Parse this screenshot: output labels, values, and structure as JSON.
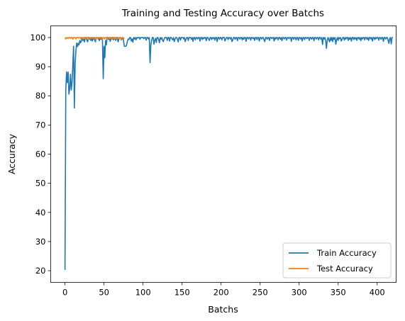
{
  "chart_data": {
    "type": "line",
    "title": "Training and Testing Accuracy over Batchs",
    "xlabel": "Batchs",
    "ylabel": "Accuracy",
    "xlim": [
      -18.3,
      424.3
    ],
    "ylim": [
      16.0,
      104.0
    ],
    "xticks": [
      0,
      50,
      100,
      150,
      200,
      250,
      300,
      350,
      400
    ],
    "yticks": [
      20,
      30,
      40,
      50,
      60,
      70,
      80,
      90,
      100
    ],
    "grid": false,
    "legend_position": "lower-right",
    "series": [
      {
        "name": "Train Accuracy",
        "color": "#1f77b4",
        "y": [
          20.3,
          82.0,
          88.2,
          84.5,
          88.2,
          80.6,
          82.5,
          87.4,
          82.0,
          84.5,
          90.6,
          97.0,
          75.8,
          91.0,
          95.5,
          98.1,
          96.9,
          98.0,
          97.5,
          99.0,
          98.2,
          98.8,
          100,
          99.0,
          99.5,
          98.5,
          100,
          100,
          99.2,
          98.5,
          100,
          99.5,
          100,
          99.0,
          100,
          98.8,
          99.5,
          100,
          99.2,
          98.5,
          100,
          100,
          99.5,
          100,
          98.9,
          100,
          99.4,
          100,
          99.0,
          85.9,
          97.0,
          93.0,
          99.0,
          97.5,
          100,
          100,
          99.3,
          100,
          98.7,
          99.6,
          100,
          100,
          99.2,
          100,
          99.5,
          99.0,
          100,
          100,
          98.5,
          99.4,
          100,
          100,
          99.2,
          99.5,
          100,
          98.9,
          97.0,
          97.0,
          97.0,
          97.5,
          98.8,
          99.5,
          99.3,
          100,
          100,
          98.8,
          99.5,
          98.4,
          100,
          99.5,
          100,
          99.2,
          100,
          99.8,
          100,
          100,
          99.4,
          100,
          100,
          100,
          100,
          99.6,
          100,
          100,
          99.1,
          100,
          100,
          99.5,
          100,
          91.4,
          97.5,
          99.0,
          100,
          100,
          97.7,
          99.1,
          99.7,
          98.3,
          100,
          100,
          99.3,
          98.2,
          100,
          99.4,
          100,
          99.0,
          98.6,
          99.5,
          100,
          100,
          100,
          99.0,
          100,
          100,
          98.8,
          100,
          100,
          99.6,
          99.2,
          100,
          98.6,
          99.5,
          100,
          100,
          99.4,
          98.5,
          100,
          100,
          99.1,
          100,
          100,
          100,
          99.5,
          100,
          98.6,
          99.4,
          100,
          100,
          99.0,
          100,
          100,
          100,
          99.4,
          100,
          98.7,
          100,
          100,
          99.2,
          100,
          100,
          99.5,
          100,
          100,
          98.8,
          100,
          100,
          99.3,
          100,
          99.6,
          100,
          100,
          98.9,
          100,
          100,
          99.5,
          99.0,
          100,
          100,
          99.3,
          100,
          99.7,
          100,
          99.1,
          100,
          100,
          98.6,
          100,
          100,
          99.4,
          100,
          100,
          99.2,
          100,
          100,
          100,
          98.8,
          99.5,
          100,
          100,
          99.3,
          100,
          100,
          99.5,
          100,
          98.6,
          99.2,
          100,
          100,
          99.4,
          100,
          100,
          98.9,
          100,
          100,
          99.5,
          100,
          100,
          99.2,
          100,
          99.4,
          100,
          100,
          98.7,
          100,
          100,
          99.5,
          100,
          100,
          99.1,
          100,
          100,
          99.6,
          100,
          99.0,
          100,
          100,
          99.3,
          100,
          100,
          98.8,
          100,
          100,
          99.5,
          100,
          100,
          99.2,
          98.6,
          100,
          100,
          99.4,
          100,
          100,
          99.0,
          100,
          100,
          99.6,
          100,
          100,
          98.8,
          100,
          99.5,
          100,
          100,
          99.2,
          100,
          100,
          99.4,
          100,
          98.9,
          100,
          100,
          99.5,
          100,
          100,
          99.1,
          100,
          100,
          99.6,
          100,
          100,
          98.7,
          100,
          100,
          99.4,
          100,
          100,
          99.2,
          100,
          100,
          99.0,
          100,
          100,
          99.5,
          100,
          98.8,
          100,
          100,
          99.3,
          100,
          100,
          99.6,
          100,
          100,
          99.0,
          100,
          100,
          99.4,
          100,
          100,
          98.9,
          100,
          100,
          99.5,
          100,
          100,
          99.2,
          100,
          100,
          99.4,
          100,
          97.6,
          100,
          99.5,
          100,
          99.0,
          96.3,
          99.0,
          100,
          99.3,
          98.5,
          100,
          99.0,
          100,
          98.6,
          100,
          99.4,
          100,
          97.7,
          99.2,
          100,
          99.0,
          100,
          99.6,
          100,
          98.8,
          99.4,
          100,
          100,
          99.1,
          100,
          99.5,
          100,
          100,
          99.0,
          100,
          99.4,
          100,
          98.8,
          100,
          100,
          99.3,
          100,
          99.5,
          100,
          99.0,
          100,
          100,
          99.4,
          100,
          98.9,
          100,
          99.5,
          100,
          100,
          99.2,
          100,
          100,
          99.4,
          100,
          99.0,
          100,
          100,
          99.5,
          100,
          98.8,
          100,
          100,
          99.3,
          100,
          99.6,
          100,
          100,
          99.1,
          100,
          100,
          99.4,
          100,
          100,
          98.7,
          100,
          100,
          99.5,
          100,
          100,
          99.0,
          98.0,
          99.6,
          100,
          97.8,
          100,
          100
        ]
      },
      {
        "name": "Test Accuracy",
        "color": "#ff7f0e",
        "y": [
          100,
          99.5,
          100,
          100,
          99.6,
          100,
          100,
          99.7,
          100,
          100,
          99.4,
          100,
          100,
          100,
          99.5,
          100,
          100,
          99.8,
          100,
          100,
          99.6,
          100,
          100,
          99.4,
          100,
          100,
          99.7,
          100,
          100,
          100,
          99.5,
          100,
          100,
          99.6,
          100,
          100,
          99.8,
          100,
          100,
          99.3,
          100,
          100,
          99.6,
          100,
          100,
          99.7,
          100,
          100,
          99.4,
          100,
          100,
          99.5,
          100,
          100,
          99.7,
          100,
          100,
          99.6,
          100,
          100,
          99.4,
          100,
          100,
          99.6,
          100,
          100,
          99.5,
          100,
          100,
          99.7,
          100,
          100,
          99.4,
          100,
          100,
          99.6,
          100
        ]
      }
    ]
  }
}
